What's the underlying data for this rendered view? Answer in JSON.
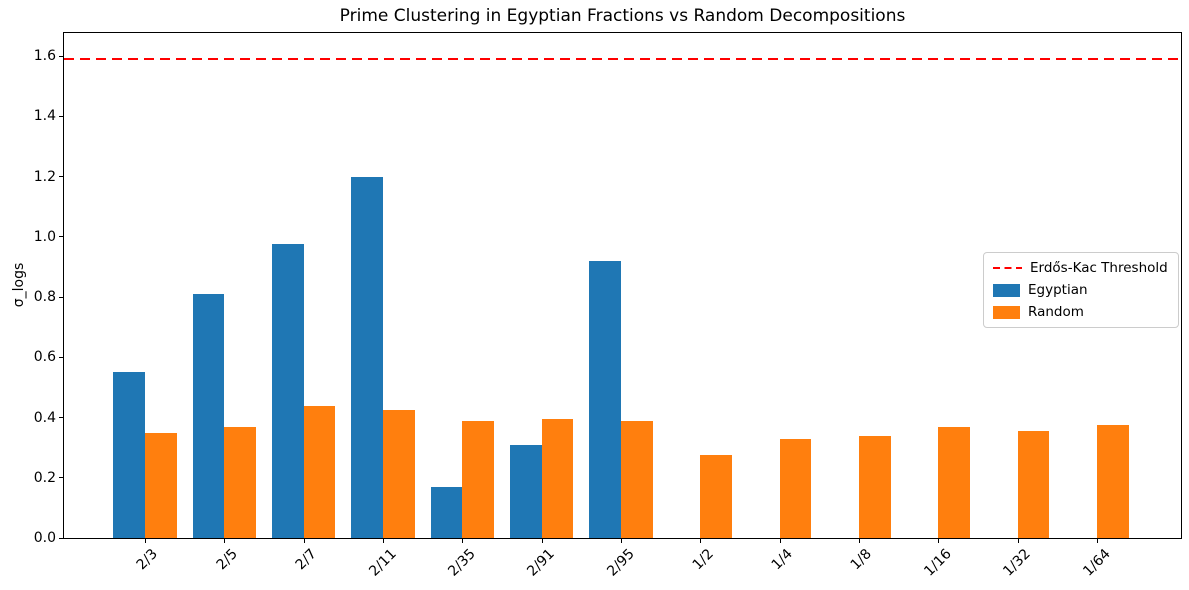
{
  "chart_data": {
    "type": "bar",
    "title": "Prime Clustering in Egyptian Fractions vs Random Decompositions",
    "xlabel": "",
    "ylabel": "σ_logs",
    "categories": [
      "2/3",
      "2/5",
      "2/7",
      "2/11",
      "2/35",
      "2/91",
      "2/95",
      "1/2",
      "1/4",
      "1/8",
      "1/16",
      "1/32",
      "1/64"
    ],
    "series": [
      {
        "name": "Egyptian",
        "color": "#1f77b4",
        "values": [
          0.55,
          0.81,
          0.975,
          1.2,
          0.17,
          0.31,
          0.92,
          0,
          0,
          0,
          0,
          0,
          0
        ]
      },
      {
        "name": "Random",
        "color": "#ff7f0e",
        "values": [
          0.35,
          0.37,
          0.44,
          0.425,
          0.39,
          0.395,
          0.39,
          0.275,
          0.33,
          0.34,
          0.37,
          0.355,
          0.375
        ]
      }
    ],
    "threshold_line": {
      "label": "Erdős-Kac Threshold",
      "value": 1.59,
      "color": "#ff0000",
      "linestyle": "dashed"
    },
    "ylim": [
      0,
      1.677
    ],
    "yticks": [
      "0.0",
      "0.2",
      "0.4",
      "0.6",
      "0.8",
      "1.0",
      "1.2",
      "1.4",
      "1.6"
    ],
    "ytick_values": [
      0,
      0.2,
      0.4,
      0.6,
      0.8,
      1.0,
      1.2,
      1.4,
      1.6
    ],
    "x_tick_rotation": 45,
    "grid": false,
    "legend_position": "center right",
    "legend_entries": [
      "Erdős-Kac Threshold",
      "Egyptian",
      "Random"
    ]
  }
}
